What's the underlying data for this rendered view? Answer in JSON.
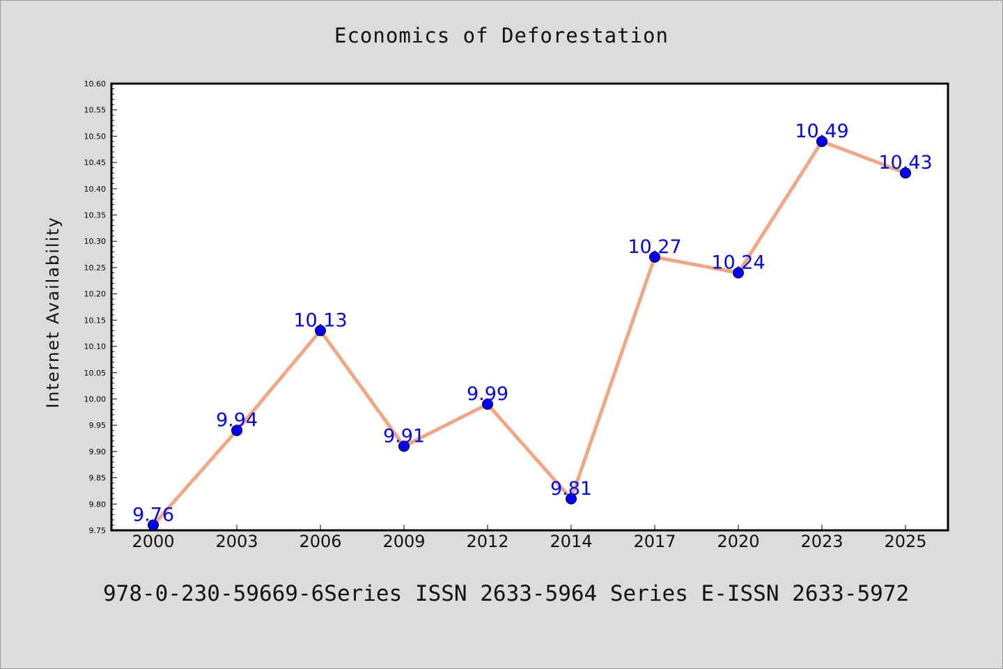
{
  "figure": {
    "title": "Economics of Deforestation",
    "ylabel": "Internet Availability",
    "footer": "978-0-230-59669-6Series ISSN 2633-5964 Series E-ISSN 2633-5972"
  },
  "chart_data": {
    "type": "line",
    "title": "Economics of Deforestation",
    "xlabel": "",
    "ylabel": "Internet Availability",
    "categories": [
      "2000",
      "2003",
      "2006",
      "2009",
      "2012",
      "2014",
      "2017",
      "2020",
      "2023",
      "2025"
    ],
    "series": [
      {
        "values": [
          9.76,
          9.94,
          10.13,
          9.91,
          9.99,
          9.81,
          10.27,
          10.24,
          10.49,
          10.43
        ]
      }
    ],
    "data_labels": [
      "9.76",
      "9.94",
      "10.13",
      "9.91",
      "9.99",
      "9.81",
      "10.27",
      "10.24",
      "10.49",
      "10.43"
    ],
    "ylim": [
      9.75,
      10.6
    ],
    "yticks": [
      9.75,
      9.8,
      9.85,
      9.9,
      9.95,
      10.0,
      10.05,
      10.1,
      10.15,
      10.2,
      10.25,
      10.3,
      10.35,
      10.4,
      10.45,
      10.5,
      10.55,
      10.6
    ],
    "grid": false,
    "colors": {
      "line": "#f4a582",
      "marker": "#0000ff",
      "label": "#0000ff",
      "background": "#dcdcdc",
      "plot": "#ffffff"
    }
  }
}
